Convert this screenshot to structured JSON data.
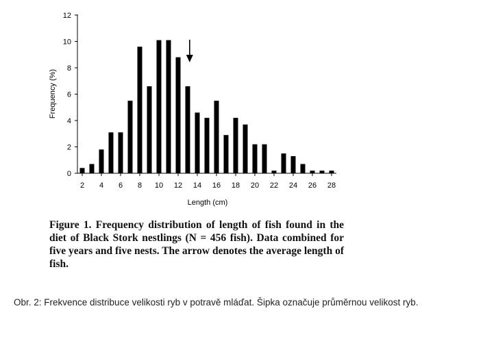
{
  "chart_data": {
    "type": "bar",
    "x": [
      2,
      3,
      4,
      5,
      6,
      7,
      8,
      9,
      10,
      11,
      12,
      13,
      14,
      15,
      16,
      17,
      18,
      19,
      20,
      21,
      22,
      23,
      24,
      25,
      26,
      27,
      28
    ],
    "values": [
      0.4,
      0.7,
      1.8,
      3.1,
      3.1,
      5.5,
      9.6,
      6.6,
      10.1,
      10.1,
      8.8,
      6.6,
      4.6,
      4.2,
      5.5,
      2.9,
      4.2,
      3.7,
      2.2,
      2.2,
      0.2,
      1.5,
      1.3,
      0.7,
      0.2,
      0.2,
      0.2
    ],
    "xticks": [
      "2",
      "4",
      "6",
      "8",
      "10",
      "12",
      "14",
      "16",
      "18",
      "20",
      "22",
      "24",
      "26",
      "28"
    ],
    "yticks": [
      "0",
      "2",
      "4",
      "6",
      "8",
      "10",
      "12"
    ],
    "xlabel": "Length (cm)",
    "ylabel": "Frequency (%)",
    "xlim": [
      1.5,
      28.5
    ],
    "ylim": [
      0,
      12
    ],
    "grid": false,
    "bar_color": "#000000",
    "annotation": {
      "type": "arrow",
      "x": 13.2,
      "meaning": "average length of fish"
    }
  },
  "caption": "Figure 1. Frequency distribution of length of fish found in the diet of Black Stork nestlings (N = 456 fish). Data combined for five years and five nests. The arrow denotes the average length of fish.",
  "note": "Obr. 2: Frekvence distribuce velikosti ryb v potravě mláďat. Šipka označuje průměrnou velikost ryb."
}
